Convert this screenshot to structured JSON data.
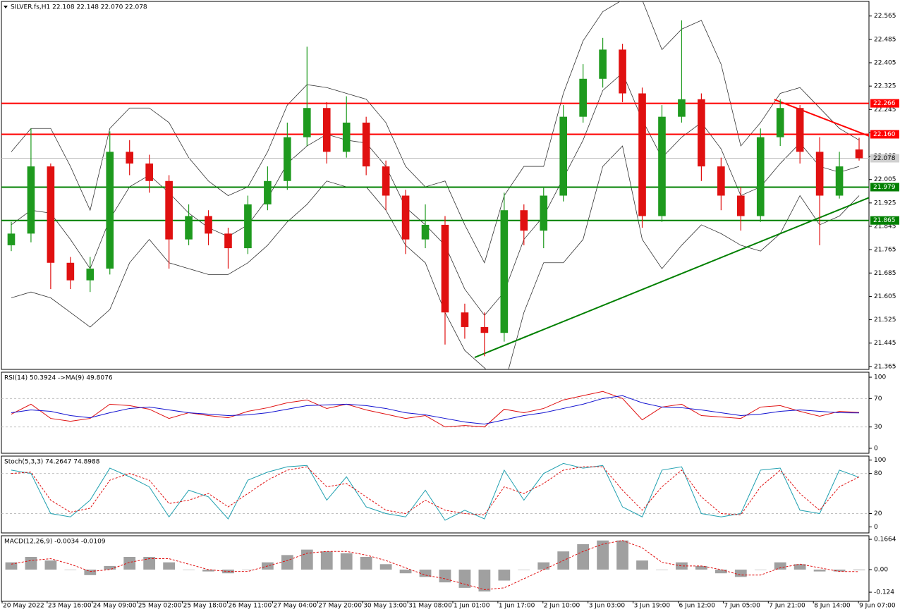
{
  "chart_data": [
    {
      "type": "candlestick",
      "title": "SILVER.fs,H1  22.108 22.148 22.070 22.078",
      "ylim": [
        21.355,
        22.615
      ],
      "yticks": [
        22.565,
        22.485,
        22.405,
        22.325,
        22.245,
        22.165,
        22.085,
        22.005,
        21.925,
        21.845,
        21.765,
        21.685,
        21.605,
        21.525,
        21.445,
        21.365
      ],
      "up_color": "#1e9a1e",
      "down_color": "#e01010",
      "band_color": "#333333",
      "open": [
        21.78,
        21.82,
        22.05,
        21.72,
        21.66,
        21.7,
        22.1,
        22.06,
        22.0,
        21.8,
        21.88,
        21.82,
        21.77,
        21.92,
        22.0,
        22.15,
        22.25,
        22.1,
        22.2,
        22.05,
        21.95,
        21.8,
        21.85,
        21.55,
        21.5,
        21.48,
        21.9,
        21.83,
        21.95,
        22.22,
        22.35,
        22.45,
        22.3,
        21.88,
        22.22,
        22.28,
        22.05,
        21.95,
        21.88,
        22.15,
        22.25,
        22.1,
        21.95,
        22.108
      ],
      "high": [
        21.86,
        22.18,
        22.06,
        21.74,
        21.74,
        22.17,
        22.14,
        22.09,
        22.02,
        21.92,
        21.9,
        21.84,
        21.95,
        22.05,
        22.2,
        22.46,
        22.27,
        22.29,
        22.22,
        22.07,
        21.97,
        21.92,
        21.88,
        21.58,
        21.55,
        21.96,
        21.92,
        21.98,
        22.26,
        22.4,
        22.49,
        22.47,
        22.32,
        22.26,
        22.55,
        22.3,
        22.08,
        21.98,
        22.18,
        22.28,
        22.26,
        22.15,
        22.1,
        22.148
      ],
      "low": [
        21.76,
        21.79,
        21.63,
        21.63,
        21.62,
        21.68,
        22.02,
        21.96,
        21.7,
        21.78,
        21.78,
        21.7,
        21.75,
        21.9,
        21.97,
        22.12,
        22.06,
        22.08,
        22.02,
        21.9,
        21.75,
        21.77,
        21.44,
        21.46,
        21.4,
        21.45,
        21.78,
        21.77,
        21.93,
        22.2,
        22.32,
        22.27,
        21.84,
        21.86,
        22.2,
        22.0,
        21.9,
        21.83,
        21.86,
        22.12,
        22.06,
        21.78,
        21.94,
        22.07
      ],
      "close": [
        21.82,
        22.05,
        21.72,
        21.66,
        21.7,
        22.1,
        22.06,
        22.0,
        21.8,
        21.88,
        21.82,
        21.77,
        21.92,
        22.0,
        22.15,
        22.25,
        22.1,
        22.2,
        22.05,
        21.95,
        21.8,
        21.85,
        21.55,
        21.5,
        21.48,
        21.9,
        21.83,
        21.95,
        22.22,
        22.35,
        22.45,
        22.3,
        21.88,
        22.22,
        22.28,
        22.05,
        21.95,
        21.88,
        22.15,
        22.25,
        22.1,
        21.95,
        22.05,
        22.078
      ],
      "upper": [
        22.1,
        22.18,
        22.18,
        22.05,
        21.9,
        22.18,
        22.25,
        22.25,
        22.2,
        22.08,
        22.0,
        21.95,
        21.98,
        22.1,
        22.26,
        22.33,
        22.32,
        22.3,
        22.28,
        22.2,
        22.05,
        21.98,
        22.0,
        21.85,
        21.72,
        21.95,
        22.05,
        22.05,
        22.3,
        22.48,
        22.58,
        22.62,
        22.62,
        22.45,
        22.52,
        22.55,
        22.4,
        22.12,
        22.2,
        22.3,
        22.32,
        22.25,
        22.18,
        22.14
      ],
      "middle": [
        21.85,
        21.9,
        21.89,
        21.8,
        21.7,
        21.87,
        21.98,
        22.02,
        21.96,
        21.89,
        21.84,
        21.81,
        21.85,
        21.94,
        22.06,
        22.12,
        22.16,
        22.14,
        22.13,
        22.05,
        21.91,
        21.85,
        21.78,
        21.63,
        21.54,
        21.62,
        21.8,
        21.88,
        22.01,
        22.14,
        22.31,
        22.37,
        22.21,
        22.08,
        22.15,
        22.2,
        22.11,
        21.95,
        21.98,
        22.06,
        22.13,
        22.05,
        22.03,
        22.05
      ],
      "lower": [
        21.6,
        21.62,
        21.6,
        21.55,
        21.5,
        21.56,
        21.72,
        21.8,
        21.72,
        21.7,
        21.68,
        21.68,
        21.72,
        21.78,
        21.86,
        21.92,
        22.0,
        21.98,
        21.98,
        21.9,
        21.78,
        21.72,
        21.55,
        21.42,
        21.36,
        21.3,
        21.55,
        21.72,
        21.72,
        21.8,
        22.05,
        22.12,
        21.8,
        21.7,
        21.78,
        21.85,
        21.82,
        21.78,
        21.76,
        21.82,
        21.95,
        21.85,
        21.88,
        21.95
      ],
      "levels": [
        {
          "value": 22.266,
          "label": "22.266",
          "color": "#ff0000"
        },
        {
          "value": 22.16,
          "label": "22.160",
          "color": "#ff0000"
        },
        {
          "value": 21.979,
          "label": "21.979",
          "color": "#008000"
        },
        {
          "value": 21.865,
          "label": "21.865",
          "color": "#008000"
        }
      ],
      "last": 22.078,
      "trendlines": [
        {
          "color": "#008000",
          "x": [
            24,
            44
          ],
          "y": [
            21.396,
            21.943
          ]
        },
        {
          "color": "#ff0000",
          "x": [
            39.2,
            44
          ],
          "y": [
            22.279,
            22.154
          ]
        }
      ]
    },
    {
      "type": "line",
      "label": "RSI(14) 50.3924  ->MA(9) 49.8076",
      "ylim": [
        -7,
        107
      ],
      "yticks": [
        100,
        70,
        30,
        0
      ],
      "levels": [
        70,
        30
      ],
      "series": [
        {
          "color": "#e01010",
          "dash": false,
          "values": [
            48,
            62,
            42,
            38,
            42,
            62,
            60,
            55,
            42,
            50,
            46,
            43,
            52,
            57,
            64,
            68,
            56,
            62,
            54,
            48,
            42,
            46,
            30,
            32,
            30,
            55,
            50,
            56,
            68,
            74,
            80,
            70,
            40,
            58,
            62,
            46,
            44,
            42,
            58,
            60,
            52,
            45,
            52,
            50.3924
          ]
        },
        {
          "color": "#1010d0",
          "dash": false,
          "values": [
            50,
            54,
            52,
            46,
            43,
            50,
            56,
            58,
            54,
            50,
            48,
            46,
            47,
            50,
            55,
            60,
            61,
            62,
            60,
            56,
            50,
            47,
            42,
            37,
            34,
            40,
            46,
            50,
            56,
            62,
            70,
            74,
            64,
            58,
            57,
            54,
            50,
            46,
            48,
            52,
            54,
            52,
            50,
            49.8076
          ]
        }
      ]
    },
    {
      "type": "line",
      "label": "Stoch(5,3,3) 74.2647 74.8988",
      "ylim": [
        -9,
        106
      ],
      "yticks": [
        100,
        80,
        20,
        0
      ],
      "levels": [
        80,
        20
      ],
      "series": [
        {
          "color": "#20a0b0",
          "dash": false,
          "values": [
            85,
            80,
            20,
            15,
            40,
            88,
            75,
            60,
            15,
            55,
            45,
            12,
            70,
            82,
            90,
            92,
            40,
            75,
            30,
            20,
            15,
            55,
            10,
            25,
            12,
            85,
            40,
            80,
            95,
            88,
            92,
            30,
            15,
            85,
            90,
            20,
            15,
            20,
            85,
            88,
            25,
            20,
            85,
            74.2647
          ]
        },
        {
          "color": "#e01010",
          "dash": true,
          "values": [
            80,
            82,
            40,
            22,
            28,
            70,
            80,
            70,
            35,
            40,
            50,
            30,
            50,
            70,
            85,
            90,
            60,
            65,
            45,
            25,
            20,
            40,
            25,
            20,
            18,
            60,
            50,
            65,
            85,
            90,
            90,
            55,
            25,
            60,
            85,
            45,
            20,
            18,
            60,
            85,
            50,
            25,
            60,
            74.8988
          ]
        }
      ]
    },
    {
      "type": "macd",
      "label": "MACD(12,26,9) -0.0034 -0.0109",
      "ylim": [
        -0.174,
        0.186
      ],
      "yticks": [
        0.1664,
        {
          "value": 0,
          "label": "0.00"
        },
        -0.124
      ],
      "histogram_color": "#a0a0a0",
      "histogram": [
        0.04,
        0.07,
        0.05,
        0.0,
        -0.03,
        0.02,
        0.07,
        0.07,
        0.04,
        0.0,
        -0.01,
        -0.02,
        0.0,
        0.04,
        0.08,
        0.11,
        0.1,
        0.09,
        0.07,
        0.03,
        -0.02,
        -0.04,
        -0.07,
        -0.1,
        -0.12,
        -0.06,
        0.0,
        0.04,
        0.1,
        0.14,
        0.16,
        0.16,
        0.05,
        0.0,
        0.04,
        0.02,
        -0.02,
        -0.04,
        0.0,
        0.04,
        0.03,
        -0.01,
        -0.01,
        -0.0034
      ],
      "series": [
        {
          "color": "#e01010",
          "dash": true,
          "values": [
            0.03,
            0.05,
            0.06,
            0.03,
            -0.01,
            0.0,
            0.04,
            0.06,
            0.06,
            0.03,
            0.0,
            -0.01,
            -0.01,
            0.02,
            0.05,
            0.09,
            0.1,
            0.1,
            0.08,
            0.05,
            0.01,
            -0.03,
            -0.05,
            -0.08,
            -0.11,
            -0.1,
            -0.05,
            0.0,
            0.05,
            0.1,
            0.14,
            0.16,
            0.12,
            0.04,
            0.02,
            0.02,
            0.0,
            -0.03,
            -0.03,
            0.01,
            0.03,
            0.01,
            -0.01,
            -0.0109
          ]
        }
      ],
      "x_labels": [
        "20 May 2022",
        "23 May 16:00",
        "24 May 09:00",
        "25 May 02:00",
        "25 May 18:00",
        "26 May 11:00",
        "27 May 04:00",
        "27 May 20:00",
        "30 May 13:00",
        "31 May 08:00",
        "1 Jun 01:00",
        "1 Jun 17:00",
        "2 Jun 10:00",
        "3 Jun 03:00",
        "3 Jun 19:00",
        "6 Jun 12:00",
        "7 Jun 05:00",
        "7 Jun 21:00",
        "8 Jun 14:00",
        "9 Jun 07:00"
      ]
    }
  ]
}
